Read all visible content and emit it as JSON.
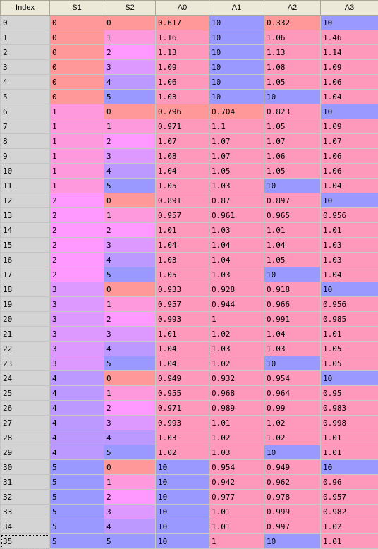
{
  "table": {
    "columns": [
      "Index",
      "S1",
      "S2",
      "A0",
      "A1",
      "A2",
      "A3"
    ],
    "selected_row": 35,
    "palette": {
      "red": "#ff9999",
      "rose": "#ff99bb",
      "pink": "#ff99dd",
      "magenta": "#ff99ff",
      "violet": "#dd99ff",
      "purple": "#bb99ff",
      "blue": "#9999ff"
    },
    "rows": [
      {
        "index": "0",
        "s1": "0",
        "s2": "0",
        "a0": "0.617",
        "a1": "10",
        "a2": "0.332",
        "a3": "10"
      },
      {
        "index": "1",
        "s1": "0",
        "s2": "1",
        "a0": "1.16",
        "a1": "10",
        "a2": "1.06",
        "a3": "1.46"
      },
      {
        "index": "2",
        "s1": "0",
        "s2": "2",
        "a0": "1.13",
        "a1": "10",
        "a2": "1.13",
        "a3": "1.14"
      },
      {
        "index": "3",
        "s1": "0",
        "s2": "3",
        "a0": "1.09",
        "a1": "10",
        "a2": "1.08",
        "a3": "1.09"
      },
      {
        "index": "4",
        "s1": "0",
        "s2": "4",
        "a0": "1.06",
        "a1": "10",
        "a2": "1.05",
        "a3": "1.06"
      },
      {
        "index": "5",
        "s1": "0",
        "s2": "5",
        "a0": "1.03",
        "a1": "10",
        "a2": "10",
        "a3": "1.04"
      },
      {
        "index": "6",
        "s1": "1",
        "s2": "0",
        "a0": "0.796",
        "a1": "0.704",
        "a2": "0.823",
        "a3": "10"
      },
      {
        "index": "7",
        "s1": "1",
        "s2": "1",
        "a0": "0.971",
        "a1": "1.1",
        "a2": "1.05",
        "a3": "1.09"
      },
      {
        "index": "8",
        "s1": "1",
        "s2": "2",
        "a0": "1.07",
        "a1": "1.07",
        "a2": "1.07",
        "a3": "1.07"
      },
      {
        "index": "9",
        "s1": "1",
        "s2": "3",
        "a0": "1.08",
        "a1": "1.07",
        "a2": "1.06",
        "a3": "1.06"
      },
      {
        "index": "10",
        "s1": "1",
        "s2": "4",
        "a0": "1.04",
        "a1": "1.05",
        "a2": "1.05",
        "a3": "1.06"
      },
      {
        "index": "11",
        "s1": "1",
        "s2": "5",
        "a0": "1.05",
        "a1": "1.03",
        "a2": "10",
        "a3": "1.04"
      },
      {
        "index": "12",
        "s1": "2",
        "s2": "0",
        "a0": "0.891",
        "a1": "0.87",
        "a2": "0.897",
        "a3": "10"
      },
      {
        "index": "13",
        "s1": "2",
        "s2": "1",
        "a0": "0.957",
        "a1": "0.961",
        "a2": "0.965",
        "a3": "0.956"
      },
      {
        "index": "14",
        "s1": "2",
        "s2": "2",
        "a0": "1.01",
        "a1": "1.03",
        "a2": "1.01",
        "a3": "1.01"
      },
      {
        "index": "15",
        "s1": "2",
        "s2": "3",
        "a0": "1.04",
        "a1": "1.04",
        "a2": "1.04",
        "a3": "1.03"
      },
      {
        "index": "16",
        "s1": "2",
        "s2": "4",
        "a0": "1.03",
        "a1": "1.04",
        "a2": "1.05",
        "a3": "1.03"
      },
      {
        "index": "17",
        "s1": "2",
        "s2": "5",
        "a0": "1.05",
        "a1": "1.03",
        "a2": "10",
        "a3": "1.04"
      },
      {
        "index": "18",
        "s1": "3",
        "s2": "0",
        "a0": "0.933",
        "a1": "0.928",
        "a2": "0.918",
        "a3": "10"
      },
      {
        "index": "19",
        "s1": "3",
        "s2": "1",
        "a0": "0.957",
        "a1": "0.944",
        "a2": "0.966",
        "a3": "0.956"
      },
      {
        "index": "20",
        "s1": "3",
        "s2": "2",
        "a0": "0.993",
        "a1": "1",
        "a2": "0.991",
        "a3": "0.985"
      },
      {
        "index": "21",
        "s1": "3",
        "s2": "3",
        "a0": "1.01",
        "a1": "1.02",
        "a2": "1.04",
        "a3": "1.01"
      },
      {
        "index": "22",
        "s1": "3",
        "s2": "4",
        "a0": "1.04",
        "a1": "1.03",
        "a2": "1.03",
        "a3": "1.05"
      },
      {
        "index": "23",
        "s1": "3",
        "s2": "5",
        "a0": "1.04",
        "a1": "1.02",
        "a2": "10",
        "a3": "1.05"
      },
      {
        "index": "24",
        "s1": "4",
        "s2": "0",
        "a0": "0.949",
        "a1": "0.932",
        "a2": "0.954",
        "a3": "10"
      },
      {
        "index": "25",
        "s1": "4",
        "s2": "1",
        "a0": "0.955",
        "a1": "0.968",
        "a2": "0.964",
        "a3": "0.95"
      },
      {
        "index": "26",
        "s1": "4",
        "s2": "2",
        "a0": "0.971",
        "a1": "0.989",
        "a2": "0.99",
        "a3": "0.983"
      },
      {
        "index": "27",
        "s1": "4",
        "s2": "3",
        "a0": "0.993",
        "a1": "1.01",
        "a2": "1.02",
        "a3": "0.998"
      },
      {
        "index": "28",
        "s1": "4",
        "s2": "4",
        "a0": "1.03",
        "a1": "1.02",
        "a2": "1.02",
        "a3": "1.01"
      },
      {
        "index": "29",
        "s1": "4",
        "s2": "5",
        "a0": "1.02",
        "a1": "1.03",
        "a2": "10",
        "a3": "1.01"
      },
      {
        "index": "30",
        "s1": "5",
        "s2": "0",
        "a0": "10",
        "a1": "0.954",
        "a2": "0.949",
        "a3": "10"
      },
      {
        "index": "31",
        "s1": "5",
        "s2": "1",
        "a0": "10",
        "a1": "0.942",
        "a2": "0.962",
        "a3": "0.96"
      },
      {
        "index": "32",
        "s1": "5",
        "s2": "2",
        "a0": "10",
        "a1": "0.977",
        "a2": "0.978",
        "a3": "0.957"
      },
      {
        "index": "33",
        "s1": "5",
        "s2": "3",
        "a0": "10",
        "a1": "1.01",
        "a2": "0.999",
        "a3": "0.982"
      },
      {
        "index": "34",
        "s1": "5",
        "s2": "4",
        "a0": "10",
        "a1": "1.01",
        "a2": "0.997",
        "a3": "1.02"
      },
      {
        "index": "35",
        "s1": "5",
        "s2": "5",
        "a0": "10",
        "a1": "1",
        "a2": "10",
        "a3": "1.01"
      }
    ]
  }
}
